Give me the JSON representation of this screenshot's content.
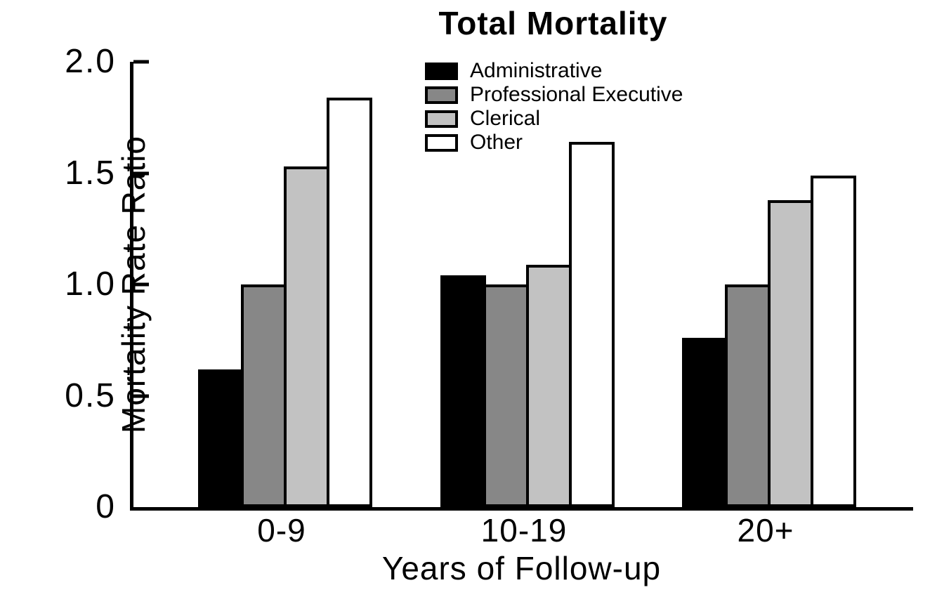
{
  "chart_data": {
    "type": "bar",
    "title": "Total Mortality",
    "xlabel": "Years of Follow-up",
    "ylabel": "Mortality Rate Ratio",
    "categories": [
      "0-9",
      "10-19",
      "20+"
    ],
    "series": [
      {
        "name": "Administrative",
        "color": "#000000",
        "values": [
          0.62,
          1.04,
          0.76
        ]
      },
      {
        "name": "Professional Executive",
        "color": "#878787",
        "values": [
          1.0,
          1.0,
          1.0
        ]
      },
      {
        "name": "Clerical",
        "color": "#c2c2c2",
        "values": [
          1.53,
          1.09,
          1.38
        ]
      },
      {
        "name": "Other",
        "color": "#ffffff",
        "values": [
          1.84,
          1.64,
          1.49
        ]
      }
    ],
    "ylim": [
      0,
      2.0
    ],
    "yticks": [
      0,
      0.5,
      1.0,
      1.5,
      2.0
    ],
    "ytick_labels": [
      "0",
      "0.5",
      "1.0",
      "1.5",
      "2.0"
    ],
    "legend_position": "top-center-inside",
    "grid": false,
    "bar_outline_color": "#000000",
    "axis_color": "#000000"
  }
}
